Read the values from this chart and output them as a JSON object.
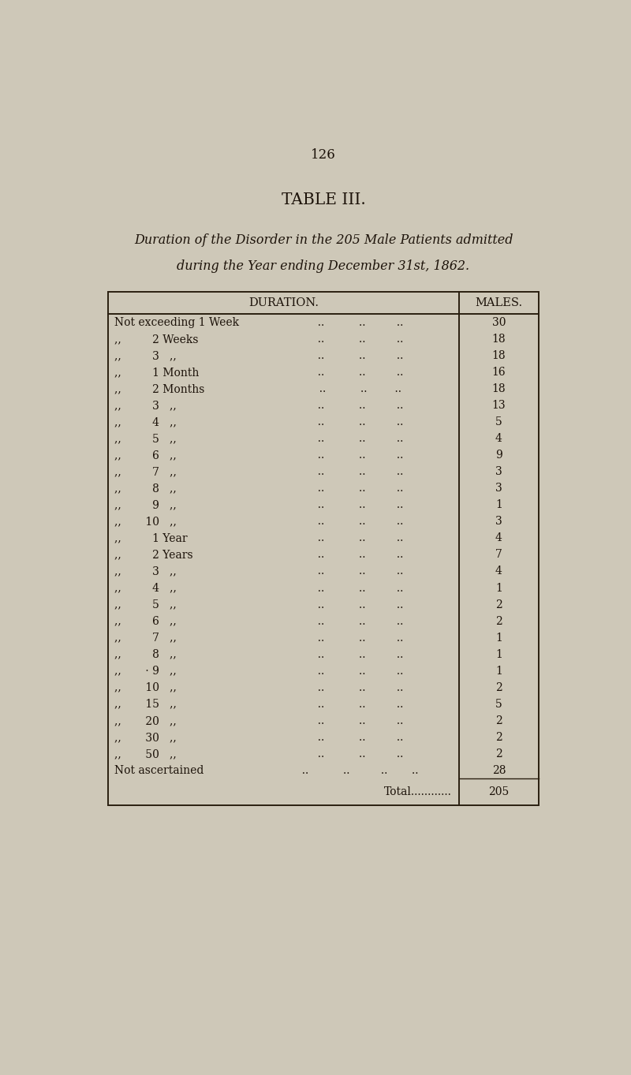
{
  "page_number": "126",
  "table_title": "TABLE III.",
  "subtitle_line1": "Duration of the Disorder in the 205 Male Patients admitted",
  "subtitle_line2": "during the Year ending December 31st, 1862.",
  "col_header_left": "DURATION.",
  "col_header_right": "MALES.",
  "rows": [
    {
      "col1": "Not exceeding 1 Week",
      "col2": "  ..          ..         ..",
      "value": "30"
    },
    {
      "col1": ",,         2 Weeks",
      "col2": "  ..          ..         ..",
      "value": "18"
    },
    {
      "col1": ",,         3   ,,",
      "col2": "  ..          ..         ..",
      "value": "18"
    },
    {
      "col1": ",,         1 Month",
      "col2": "  ..          ..         ..",
      "value": "16"
    },
    {
      "col1": ",,         2 Months",
      "col2": "  ..          ..        ..",
      "value": "18"
    },
    {
      "col1": ",,         3   ,,",
      "col2": "  ..          ..         ..",
      "value": "13"
    },
    {
      "col1": ",,         4   ,,",
      "col2": "  ..          ..         ..",
      "value": "5"
    },
    {
      "col1": ",,         5   ,,",
      "col2": "  ..          ..         ..",
      "value": "4"
    },
    {
      "col1": ",,         6   ,,",
      "col2": "  ..          ..         ..",
      "value": "9"
    },
    {
      "col1": ",,         7   ,,",
      "col2": "  ..          ..         ..",
      "value": "3"
    },
    {
      "col1": ",,         8   ,,",
      "col2": "  ..          ..         ..",
      "value": "3"
    },
    {
      "col1": ",,         9   ,,",
      "col2": "  ..          ..         ..",
      "value": "1"
    },
    {
      "col1": ",,       10   ,,",
      "col2": "  ..          ..         ..",
      "value": "3"
    },
    {
      "col1": ",,         1 Year",
      "col2": "  ..          ..         ..",
      "value": "4"
    },
    {
      "col1": ",,         2 Years",
      "col2": "  ..          ..         ..",
      "value": "7"
    },
    {
      "col1": ",,         3   ,,",
      "col2": "  ..          ..         ..",
      "value": "4"
    },
    {
      "col1": ",,         4   ,,",
      "col2": "  ..          ..         ..",
      "value": "1"
    },
    {
      "col1": ",,         5   ,,",
      "col2": "  ..          ..         ..",
      "value": "2"
    },
    {
      "col1": ",,         6   ,,",
      "col2": "  ..          ..         ..",
      "value": "2"
    },
    {
      "col1": ",,         7   ,,",
      "col2": "  ..          ..         ..",
      "value": "1"
    },
    {
      "col1": ",,         8   ,,",
      "col2": "  ..          ..         ..",
      "value": "1"
    },
    {
      "col1": ",,       · 9   ,,",
      "col2": "  ..          ..         ..",
      "value": "1"
    },
    {
      "col1": ",,       10   ,,",
      "col2": "  ..          ..         ..",
      "value": "2"
    },
    {
      "col1": ",,       15   ,,",
      "col2": "  ..          ..         ..",
      "value": "5"
    },
    {
      "col1": ",,       20   ,,",
      "col2": "  ..          ..         ..",
      "value": "2"
    },
    {
      "col1": ",,       30   ,,",
      "col2": "  ..          ..         ..",
      "value": "2"
    },
    {
      "col1": ",,       50   ,,",
      "col2": "  ..          ..         ..",
      "value": "2"
    },
    {
      "col1": "Not ascertained",
      "col2": "  ..          ..         ..       ..",
      "value": "28"
    }
  ],
  "total_label": "Total............",
  "total_value": "205",
  "bg_color": "#cec8b8",
  "text_color": "#1c1209",
  "line_color": "#2a1f10"
}
